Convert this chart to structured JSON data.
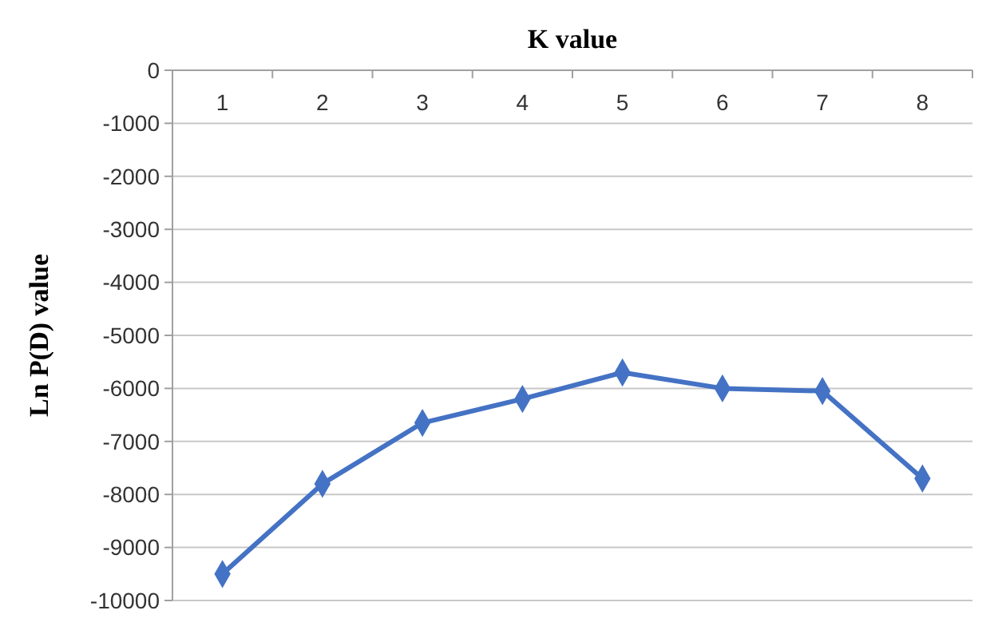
{
  "chart_data": {
    "type": "line",
    "xlabel": "K value",
    "ylabel": "Ln P(D) value",
    "categories": [
      "1",
      "2",
      "3",
      "4",
      "5",
      "6",
      "7",
      "8"
    ],
    "series": [
      {
        "color": "#4472c4",
        "values": [
          -9500,
          -7800,
          -6650,
          -6200,
          -5700,
          -6000,
          -6050,
          -7700
        ]
      }
    ],
    "ylim": [
      -10000,
      0
    ],
    "yticks": [
      -10000,
      -9000,
      -8000,
      -7000,
      -6000,
      -5000,
      -4000,
      -3000,
      -2000,
      -1000,
      0
    ],
    "grid": "y",
    "marker": "diamond",
    "line_style": "solid"
  }
}
